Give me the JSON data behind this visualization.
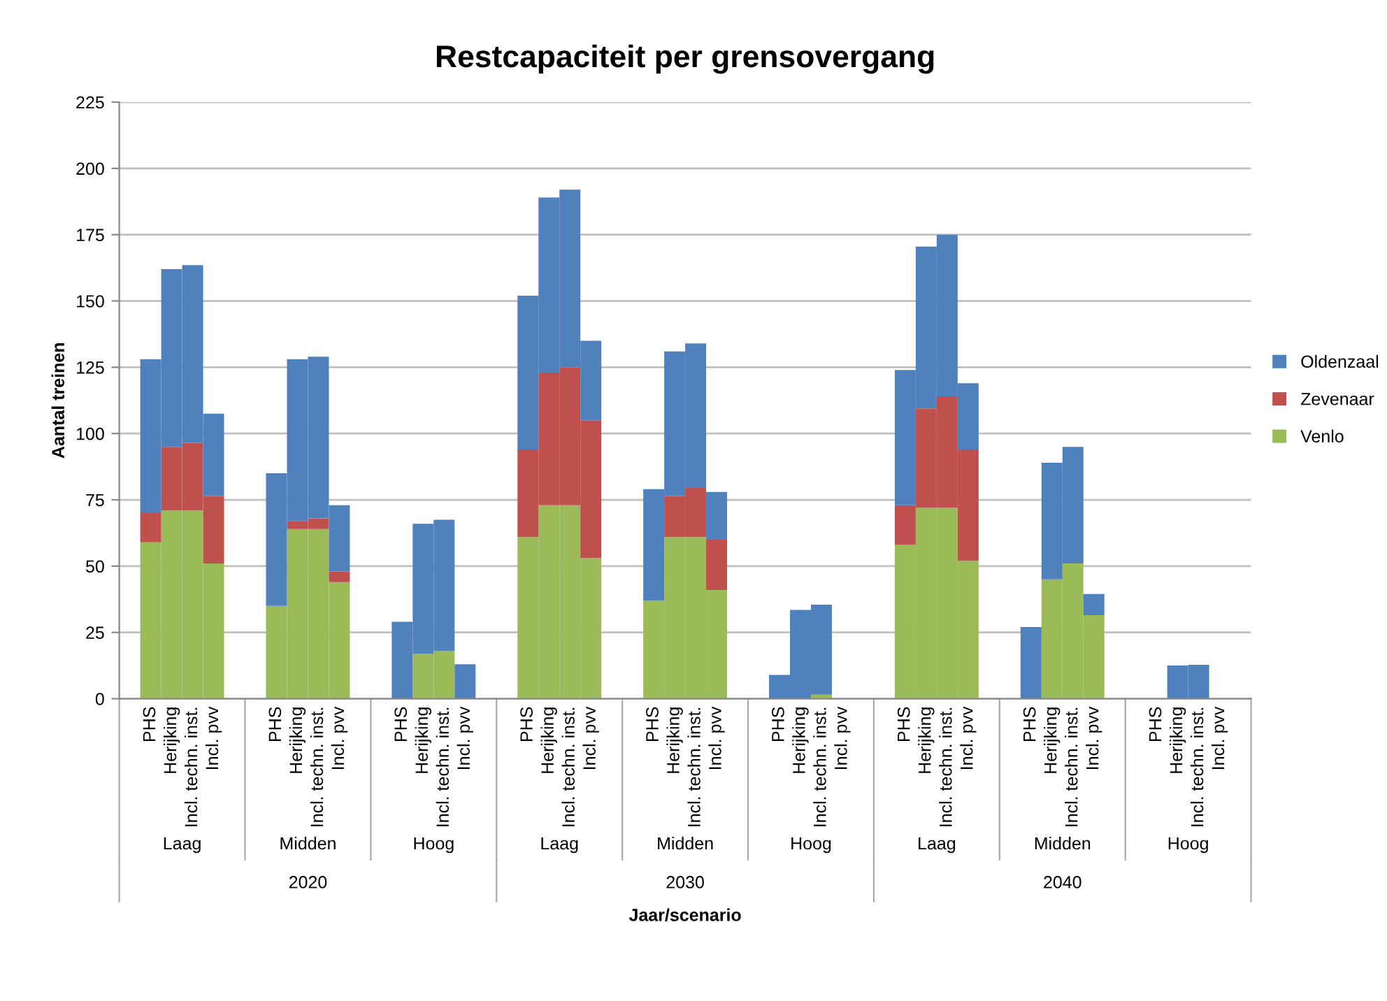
{
  "chart_data": {
    "type": "bar",
    "stacked": true,
    "title": "Restcapaciteit per grensovergang",
    "ylabel": "Aantal treinen",
    "xlabel": "Jaar/scenario",
    "categories": [
      "PHS",
      "Herijking",
      "Incl. techn. inst.",
      "Incl. pvv",
      "PHS",
      "Herijking",
      "Incl. techn. inst.",
      "Incl. pvv",
      "PHS",
      "Herijking",
      "Incl. techn. inst.",
      "Incl. pvv",
      "PHS",
      "Herijking",
      "Incl. techn. inst.",
      "Incl. pvv",
      "PHS",
      "Herijking",
      "Incl. techn. inst.",
      "Incl. pvv",
      "PHS",
      "Herijking",
      "Incl. techn. inst.",
      "Incl. pvv",
      "PHS",
      "Herijking",
      "Incl. techn. inst.",
      "Incl. pvv",
      "PHS",
      "Herijking",
      "Incl. techn. inst.",
      "Incl. pvv",
      "PHS",
      "Herijking",
      "Incl. techn. inst.",
      "Incl. pvv"
    ],
    "annotations": [
      "Laag",
      "Midden",
      "Hoog",
      "Laag",
      "Midden",
      "Hoog",
      "Laag",
      "Midden",
      "Hoog",
      "2020",
      "2030",
      "2040"
    ],
    "series": [
      {
        "name": "Venlo",
        "color": "#9bbb59",
        "values": [
          59,
          71,
          71,
          51,
          35,
          64,
          64,
          44,
          0,
          17,
          18,
          0,
          61,
          73,
          73,
          53,
          37,
          61,
          61,
          41,
          0,
          0,
          1.5,
          0,
          58,
          72,
          72,
          52,
          0,
          45,
          51,
          31.5,
          0,
          0,
          0,
          0
        ]
      },
      {
        "name": "Zevenaar",
        "color": "#c0504d",
        "values": [
          11,
          24,
          25.5,
          25.5,
          0,
          3,
          4,
          4,
          0,
          0,
          0,
          0,
          33,
          50,
          52,
          52,
          0,
          15.5,
          18.5,
          19,
          0,
          0,
          0,
          0,
          15,
          37.5,
          42,
          42,
          0,
          0,
          0,
          0,
          0,
          0,
          0,
          0
        ]
      },
      {
        "name": "Oldenzaal",
        "color": "#4f81bd",
        "values": [
          58,
          67,
          67,
          31,
          50,
          61,
          61,
          25,
          29,
          49,
          49.5,
          13,
          58,
          66,
          67,
          30,
          42,
          54.5,
          54.5,
          18,
          9,
          33.5,
          34,
          0,
          51,
          61,
          61,
          25,
          27,
          44,
          44,
          8,
          0,
          12.5,
          12.8,
          0
        ]
      }
    ],
    "ylim": [
      0,
      225
    ],
    "yticks": [
      0,
      25,
      50,
      75,
      100,
      125,
      150,
      175,
      200,
      225
    ],
    "grid": "y",
    "legend": "right"
  }
}
